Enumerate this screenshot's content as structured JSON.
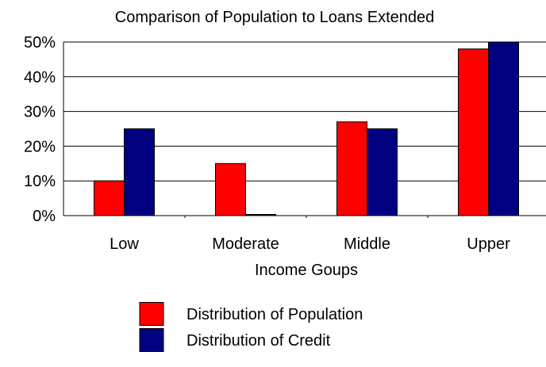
{
  "chart_data": {
    "type": "bar",
    "title": "Comparison of Population to Loans Extended",
    "xlabel": "Income Goups",
    "ylabel": "",
    "categories": [
      "Low",
      "Moderate",
      "Middle",
      "Upper"
    ],
    "series": [
      {
        "name": "Distribution of Population",
        "values": [
          10,
          15,
          27,
          48
        ],
        "color": "#ff0000"
      },
      {
        "name": "Distribution of Credit",
        "values": [
          25,
          0.3,
          25,
          50
        ],
        "color": "#000080"
      }
    ],
    "ylim": [
      0,
      50
    ],
    "yticks": [
      0,
      10,
      20,
      30,
      40,
      50
    ],
    "ytick_labels": [
      "0%",
      "10%",
      "20%",
      "30%",
      "40%",
      "50%"
    ],
    "grid": true,
    "legend_position": "bottom"
  }
}
